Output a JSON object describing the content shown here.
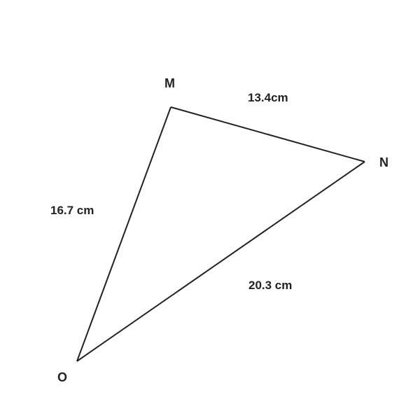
{
  "vertices": {
    "M": "M",
    "N": "N",
    "O": "O"
  },
  "sides": {
    "MN": "13.4cm",
    "MO": "16.7 cm",
    "NO": "20.3 cm"
  },
  "colors": {
    "line": "#222222",
    "text": "#222222",
    "background": "#ffffff"
  }
}
